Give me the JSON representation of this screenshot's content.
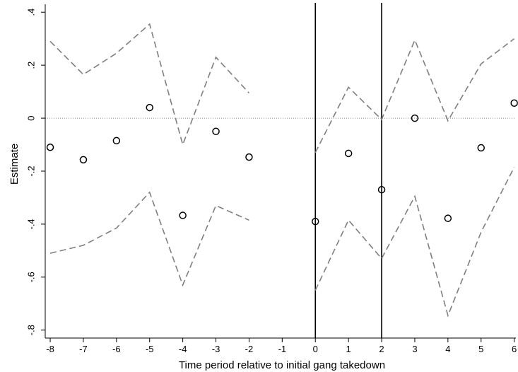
{
  "chart_data": {
    "type": "scatter",
    "title": "",
    "xlabel": "Time period relative to initial gang takedown",
    "ylabel": "Estimate",
    "xlim": [
      -8.15,
      6.05
    ],
    "ylim": [
      -0.83,
      0.43
    ],
    "xticks": [
      -8,
      -7,
      -6,
      -5,
      -4,
      -3,
      -2,
      -1,
      0,
      1,
      2,
      3,
      4,
      5,
      6
    ],
    "yticks": [
      0.4,
      0.2,
      0,
      -0.2,
      -0.4,
      -0.6,
      -0.8
    ],
    "ytick_labels": [
      ".4",
      ".2",
      "0",
      "-.2",
      "-.4",
      "-.6",
      "-.8"
    ],
    "reference_line_y": 0,
    "vertical_lines_x": [
      0,
      2
    ],
    "series": [
      {
        "name": "",
        "kind": "point",
        "x": [
          -8,
          -7,
          -6,
          -5,
          -4,
          -3,
          -2,
          0,
          1,
          2,
          3,
          4,
          5,
          6
        ],
        "y": [
          -0.11,
          -0.157,
          -0.085,
          0.04,
          -0.367,
          -0.05,
          -0.147,
          -0.39,
          -0.133,
          -0.27,
          0.0,
          -0.378,
          -0.112,
          0.057
        ]
      },
      {
        "name": "",
        "kind": "upper-ci",
        "segments": [
          {
            "x": [
              -8,
              -7,
              -6,
              -5,
              -4,
              -3,
              -2
            ],
            "y": [
              0.29,
              0.165,
              0.245,
              0.355,
              -0.1,
              0.23,
              0.095
            ]
          },
          {
            "x": [
              0,
              1,
              2,
              3,
              4,
              5,
              6
            ],
            "y": [
              -0.13,
              0.117,
              -0.005,
              0.295,
              -0.01,
              0.205,
              0.3
            ]
          }
        ]
      },
      {
        "name": "",
        "kind": "lower-ci",
        "segments": [
          {
            "x": [
              -8,
              -7,
              -6,
              -5,
              -4,
              -3,
              -2
            ],
            "y": [
              -0.51,
              -0.48,
              -0.415,
              -0.28,
              -0.63,
              -0.33,
              -0.385
            ]
          },
          {
            "x": [
              0,
              1,
              2,
              3,
              4,
              5,
              6
            ],
            "y": [
              -0.65,
              -0.385,
              -0.53,
              -0.295,
              -0.745,
              -0.43,
              -0.185
            ]
          }
        ]
      }
    ]
  }
}
